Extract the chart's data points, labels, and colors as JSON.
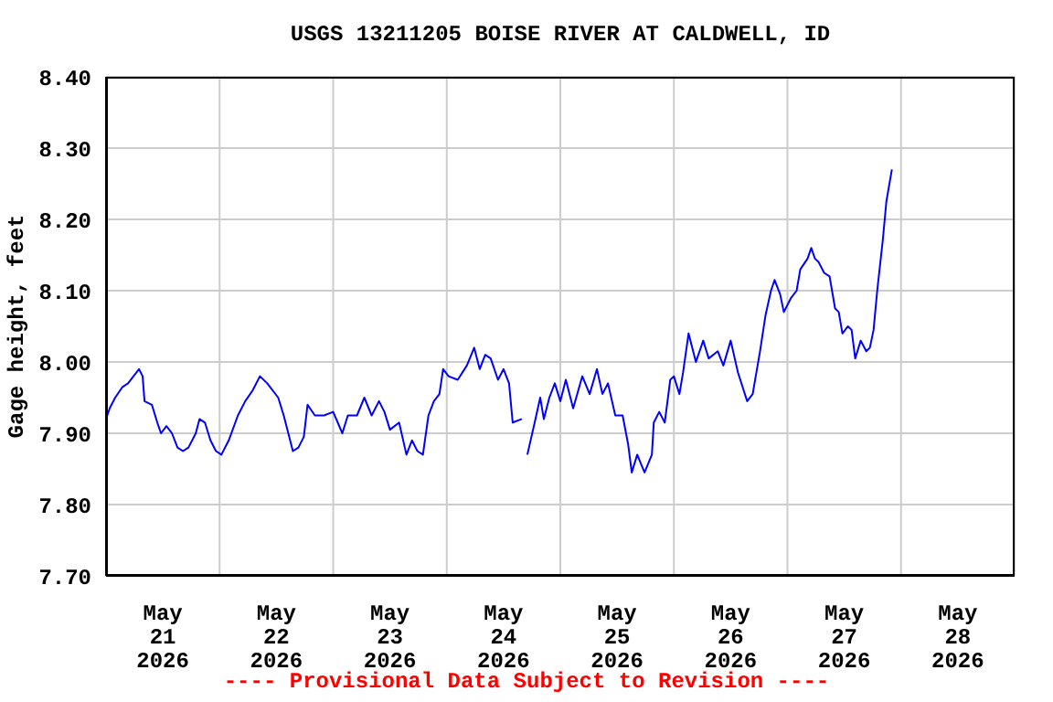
{
  "chart_data": {
    "type": "line",
    "title": "USGS 13211205 BOISE RIVER AT CALDWELL, ID",
    "ylabel": "Gage height, feet",
    "annotations": [
      "---- Provisional Data Subject to Revision ----"
    ],
    "x": [
      "2026-05-21T00:00",
      "2026-05-21T00:46",
      "2026-05-21T01:56",
      "2026-05-21T03:29",
      "2026-05-21T04:39",
      "2026-05-21T05:48",
      "2026-05-21T06:58",
      "2026-05-21T07:44",
      "2026-05-21T08:08",
      "2026-05-21T09:41",
      "2026-05-21T10:50",
      "2026-05-21T11:37",
      "2026-05-21T12:46",
      "2026-05-21T13:56",
      "2026-05-21T15:06",
      "2026-05-21T16:15",
      "2026-05-21T17:25",
      "2026-05-21T18:58",
      "2026-05-21T19:45",
      "2026-05-21T20:54",
      "2026-05-21T22:04",
      "2026-05-21T23:14",
      "2026-05-22T00:23",
      "2026-05-22T01:56",
      "2026-05-22T03:52",
      "2026-05-22T05:25",
      "2026-05-22T06:58",
      "2026-05-22T08:31",
      "2026-05-22T10:04",
      "2026-05-22T12:23",
      "2026-05-22T13:33",
      "2026-05-22T14:43",
      "2026-05-22T15:29",
      "2026-05-22T16:39",
      "2026-05-22T17:48",
      "2026-05-22T18:35",
      "2026-05-22T20:08",
      "2026-05-22T22:04",
      "2026-05-23T00:00",
      "2026-05-23T01:56",
      "2026-05-23T03:06",
      "2026-05-23T05:02",
      "2026-05-23T06:35",
      "2026-05-23T08:08",
      "2026-05-23T09:41",
      "2026-05-23T10:50",
      "2026-05-23T12:00",
      "2026-05-23T13:56",
      "2026-05-23T15:29",
      "2026-05-23T16:39",
      "2026-05-23T17:48",
      "2026-05-23T18:58",
      "2026-05-23T20:08",
      "2026-05-23T21:17",
      "2026-05-23T22:27",
      "2026-05-23T23:14",
      "2026-05-24T00:23",
      "2026-05-24T02:19",
      "2026-05-24T04:15",
      "2026-05-24T05:48",
      "2026-05-24T06:58",
      "2026-05-24T08:08",
      "2026-05-24T09:17",
      "2026-05-24T10:50",
      "2026-05-24T12:00",
      "2026-05-24T13:10",
      "2026-05-24T13:56",
      "2026-05-24T15:52",
      "2026-05-24T16:27",
      "2026-05-24T17:02",
      "2026-05-24T18:35",
      "2026-05-24T19:45",
      "2026-05-24T20:31",
      "2026-05-24T21:41",
      "2026-05-24T22:50",
      "2026-05-25T00:00",
      "2026-05-25T01:10",
      "2026-05-25T02:43",
      "2026-05-25T04:39",
      "2026-05-25T06:12",
      "2026-05-25T07:44",
      "2026-05-25T08:54",
      "2026-05-25T10:04",
      "2026-05-25T11:37",
      "2026-05-25T13:10",
      "2026-05-25T14:19",
      "2026-05-25T15:06",
      "2026-05-25T16:15",
      "2026-05-25T17:48",
      "2026-05-25T19:21",
      "2026-05-25T19:45",
      "2026-05-25T20:54",
      "2026-05-25T22:04",
      "2026-05-25T23:14",
      "2026-05-26T00:00",
      "2026-05-26T01:10",
      "2026-05-26T01:56",
      "2026-05-26T03:06",
      "2026-05-26T04:39",
      "2026-05-26T06:12",
      "2026-05-26T07:21",
      "2026-05-26T09:17",
      "2026-05-26T10:27",
      "2026-05-26T12:00",
      "2026-05-26T13:33",
      "2026-05-26T15:29",
      "2026-05-26T16:39",
      "2026-05-26T18:12",
      "2026-05-26T19:21",
      "2026-05-26T20:31",
      "2026-05-26T21:17",
      "2026-05-26T22:27",
      "2026-05-26T23:14",
      "2026-05-27T00:46",
      "2026-05-27T01:56",
      "2026-05-27T02:43",
      "2026-05-27T04:15",
      "2026-05-27T05:02",
      "2026-05-27T05:48",
      "2026-05-27T06:35",
      "2026-05-27T07:45",
      "2026-05-27T08:54",
      "2026-05-27T10:04",
      "2026-05-27T10:50",
      "2026-05-27T11:37",
      "2026-05-27T12:46",
      "2026-05-27T13:33",
      "2026-05-27T14:19",
      "2026-05-27T15:29",
      "2026-05-27T16:39",
      "2026-05-27T17:25",
      "2026-05-27T18:12",
      "2026-05-27T18:58",
      "2026-05-27T20:08",
      "2026-05-27T20:54",
      "2026-05-27T22:04"
    ],
    "series": [
      {
        "color": "#0000ff",
        "values": [
          7.92,
          7.935,
          7.95,
          7.965,
          7.97,
          7.98,
          7.99,
          7.98,
          7.945,
          7.94,
          7.915,
          7.9,
          7.91,
          7.9,
          7.88,
          7.875,
          7.88,
          7.9,
          7.92,
          7.915,
          7.89,
          7.875,
          7.87,
          7.89,
          7.925,
          7.945,
          7.96,
          7.98,
          7.97,
          7.95,
          7.925,
          7.895,
          7.875,
          7.88,
          7.895,
          7.94,
          7.925,
          7.925,
          7.93,
          7.9,
          7.925,
          7.925,
          7.95,
          7.925,
          7.945,
          7.93,
          7.905,
          7.915,
          7.87,
          7.89,
          7.875,
          7.87,
          7.925,
          7.945,
          7.955,
          7.99,
          7.98,
          7.975,
          7.995,
          8.02,
          7.99,
          8.01,
          8.005,
          7.975,
          7.99,
          7.97,
          7.915,
          7.92,
          null,
          7.87,
          7.915,
          7.95,
          7.92,
          7.95,
          7.97,
          7.945,
          7.975,
          7.935,
          7.98,
          7.955,
          7.99,
          7.955,
          7.97,
          7.925,
          7.925,
          7.885,
          7.845,
          7.87,
          7.845,
          7.87,
          7.915,
          7.93,
          7.915,
          7.975,
          7.98,
          7.955,
          7.985,
          8.04,
          8.0,
          8.03,
          8.005,
          8.015,
          7.995,
          8.03,
          7.985,
          7.945,
          7.955,
          8.015,
          8.065,
          8.1,
          8.115,
          8.095,
          8.07,
          8.09,
          8.1,
          8.13,
          8.145,
          8.16,
          8.145,
          8.14,
          8.125,
          8.12,
          8.075,
          8.07,
          8.04,
          8.05,
          8.045,
          8.005,
          8.03,
          8.015,
          8.02,
          8.045,
          8.1,
          8.17,
          8.225,
          8.27
        ]
      }
    ],
    "xlim": [
      "2026-05-21T00:00",
      "2026-05-29T00:00"
    ],
    "xticks": [
      {
        "value": "2026-05-21T00:00",
        "label": null
      },
      {
        "value": "2026-05-21T12:00",
        "label": "May 21 2026"
      },
      {
        "value": "2026-05-22T00:00",
        "label": null
      },
      {
        "value": "2026-05-22T12:00",
        "label": "May 22 2026"
      },
      {
        "value": "2026-05-23T00:00",
        "label": null
      },
      {
        "value": "2026-05-23T12:00",
        "label": "May 23 2026"
      },
      {
        "value": "2026-05-24T00:00",
        "label": null
      },
      {
        "value": "2026-05-24T12:00",
        "label": "May 24 2026"
      },
      {
        "value": "2026-05-25T00:00",
        "label": null
      },
      {
        "value": "2026-05-25T12:00",
        "label": "May 25 2026"
      },
      {
        "value": "2026-05-26T00:00",
        "label": null
      },
      {
        "value": "2026-05-26T12:00",
        "label": "May 26 2026"
      },
      {
        "value": "2026-05-27T00:00",
        "label": null
      },
      {
        "value": "2026-05-27T12:00",
        "label": "May 27 2026"
      },
      {
        "value": "2026-05-28T00:00",
        "label": null
      },
      {
        "value": "2026-05-28T12:00",
        "label": "May 28 2026"
      },
      {
        "value": "2026-05-29T00:00",
        "label": null
      }
    ],
    "ylim": [
      7.7,
      8.4
    ],
    "yticks": [
      {
        "value": 7.7,
        "label": "7.70"
      },
      {
        "value": 7.8,
        "label": "7.80"
      },
      {
        "value": 7.9,
        "label": "7.90"
      },
      {
        "value": 8.0,
        "label": "8.00"
      },
      {
        "value": 8.1,
        "label": "8.10"
      },
      {
        "value": 8.2,
        "label": "8.20"
      },
      {
        "value": 8.3,
        "label": "8.30"
      },
      {
        "value": 8.4,
        "label": "8.40"
      }
    ],
    "grid": true,
    "legend": false,
    "marker": "none",
    "line_style": "solid"
  }
}
